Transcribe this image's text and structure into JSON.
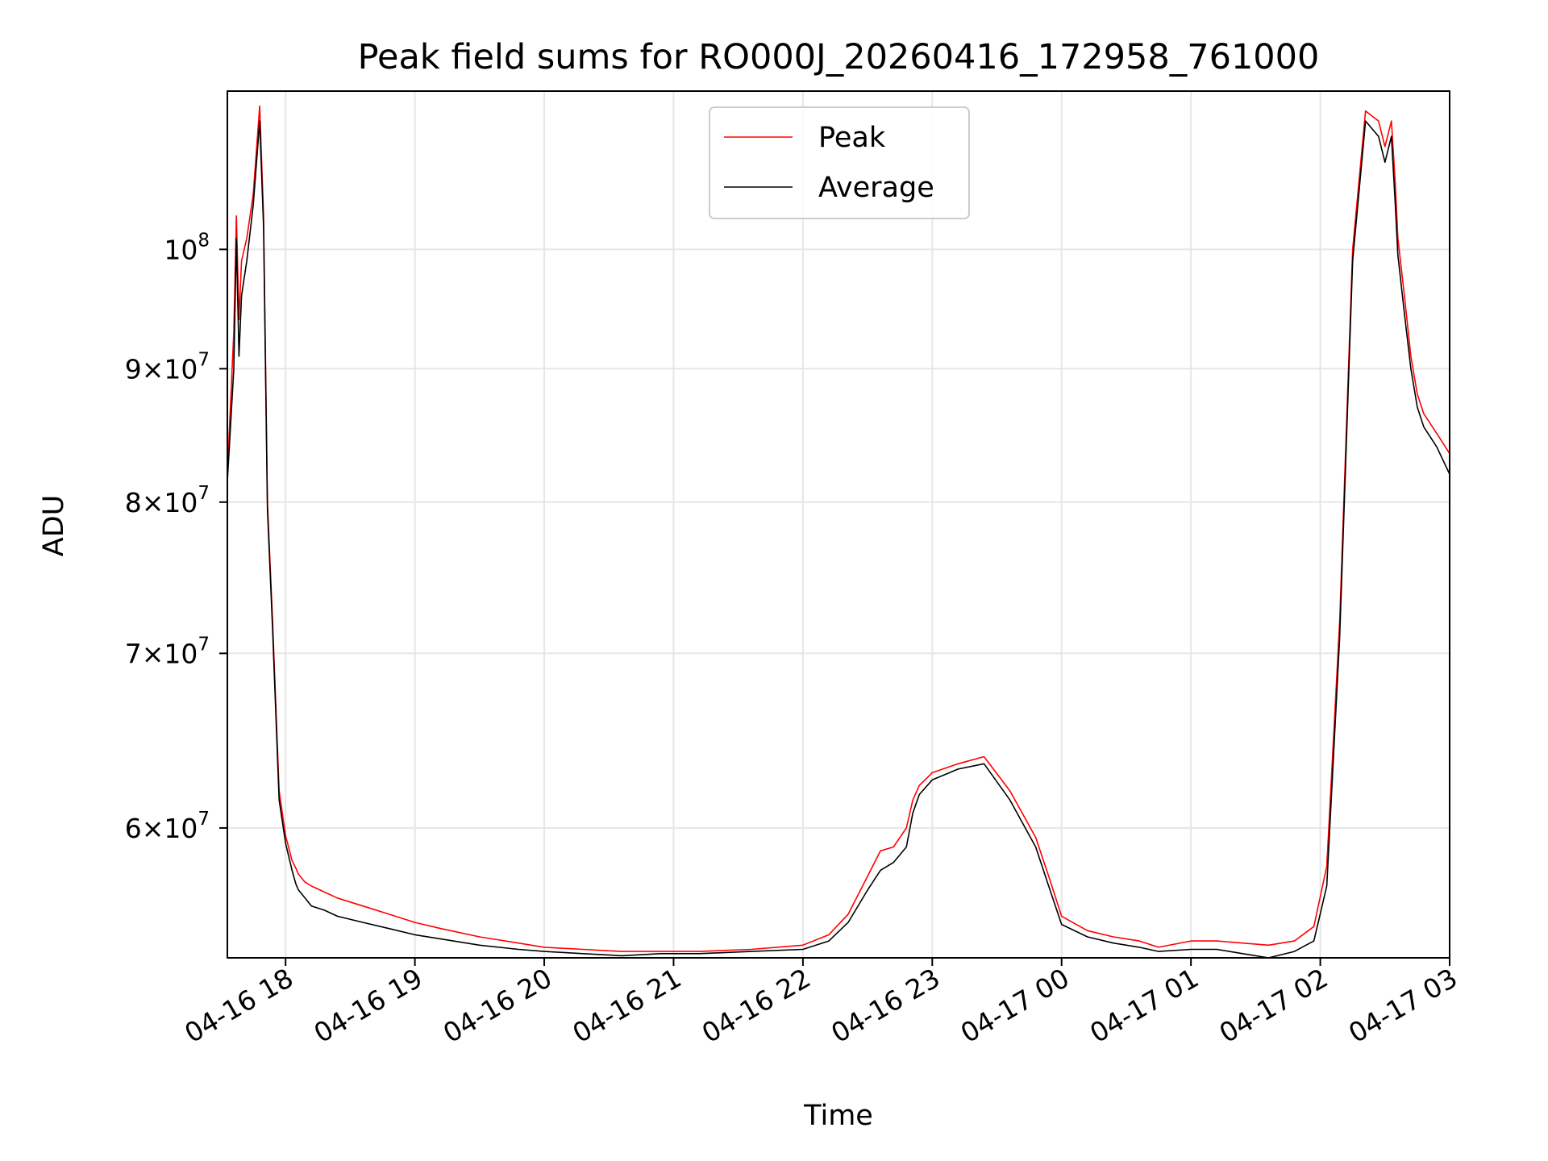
{
  "chart_data": {
    "type": "line",
    "title": "Peak field sums for RO000J_20260416_172958_761000",
    "xlabel": "Time",
    "ylabel": "ADU",
    "yscale": "log",
    "xlim": [
      17.55,
      27.0
    ],
    "ylim": [
      53500000,
      115000000
    ],
    "grid": true,
    "legend": {
      "position": "top-center",
      "entries": [
        "Peak",
        "Average"
      ]
    },
    "x_ticks": [
      {
        "value": 18,
        "label": "04-16 18"
      },
      {
        "value": 19,
        "label": "04-16 19"
      },
      {
        "value": 20,
        "label": "04-16 20"
      },
      {
        "value": 21,
        "label": "04-16 21"
      },
      {
        "value": 22,
        "label": "04-16 22"
      },
      {
        "value": 23,
        "label": "04-16 23"
      },
      {
        "value": 24,
        "label": "04-17 00"
      },
      {
        "value": 25,
        "label": "04-17 01"
      },
      {
        "value": 26,
        "label": "04-17 02"
      },
      {
        "value": 27,
        "label": "04-17 03"
      }
    ],
    "y_ticks": [
      {
        "value": 60000000,
        "mantissa": "6",
        "base": "10",
        "exponent": "7"
      },
      {
        "value": 70000000,
        "mantissa": "7",
        "base": "10",
        "exponent": "7"
      },
      {
        "value": 80000000,
        "mantissa": "8",
        "base": "10",
        "exponent": "7"
      },
      {
        "value": 90000000,
        "mantissa": "9",
        "base": "10",
        "exponent": "7"
      },
      {
        "value": 100000000,
        "mantissa": "",
        "base": "10",
        "exponent": "8"
      }
    ],
    "series": [
      {
        "name": "Peak",
        "color": "#ff0000",
        "x": [
          17.55,
          17.6,
          17.62,
          17.64,
          17.66,
          17.7,
          17.75,
          17.8,
          17.83,
          17.86,
          17.9,
          17.95,
          18.0,
          18.05,
          18.08,
          18.1,
          18.15,
          18.2,
          18.3,
          18.4,
          18.6,
          18.8,
          19.0,
          19.2,
          19.5,
          19.8,
          20.0,
          20.3,
          20.6,
          20.9,
          21.2,
          21.6,
          22.0,
          22.2,
          22.35,
          22.5,
          22.6,
          22.7,
          22.8,
          22.85,
          22.9,
          23.0,
          23.2,
          23.4,
          23.6,
          23.8,
          23.9,
          24.0,
          24.2,
          24.4,
          24.6,
          24.75,
          25.0,
          25.2,
          25.4,
          25.6,
          25.8,
          25.95,
          26.05,
          26.15,
          26.25,
          26.35,
          26.45,
          26.5,
          26.55,
          26.58,
          26.6,
          26.65,
          26.7,
          26.75,
          26.8,
          26.9,
          27.0
        ],
        "y": [
          82000000,
          93000000,
          103000000,
          94000000,
          99000000,
          101000000,
          105000000,
          113500000,
          103000000,
          80000000,
          72000000,
          62000000,
          59600000,
          58300000,
          57900000,
          57600000,
          57200000,
          57000000,
          56700000,
          56400000,
          56000000,
          55600000,
          55200000,
          54900000,
          54500000,
          54200000,
          54000000,
          53900000,
          53800000,
          53800000,
          53800000,
          53900000,
          54100000,
          54600000,
          55600000,
          57500000,
          58800000,
          59000000,
          60000000,
          61500000,
          62300000,
          63000000,
          63500000,
          63900000,
          62000000,
          59500000,
          57500000,
          55500000,
          54800000,
          54500000,
          54300000,
          54000000,
          54300000,
          54300000,
          54200000,
          54100000,
          54300000,
          55000000,
          58000000,
          72000000,
          100000000,
          113000000,
          112000000,
          109500000,
          112000000,
          106000000,
          101000000,
          96000000,
          91000000,
          88000000,
          86500000,
          85000000,
          83500000
        ]
      },
      {
        "name": "Average",
        "color": "#000000",
        "x": [
          17.55,
          17.6,
          17.62,
          17.64,
          17.66,
          17.7,
          17.75,
          17.8,
          17.83,
          17.86,
          17.9,
          17.95,
          18.0,
          18.05,
          18.08,
          18.1,
          18.15,
          18.2,
          18.3,
          18.4,
          18.6,
          18.8,
          19.0,
          19.2,
          19.5,
          19.8,
          20.0,
          20.3,
          20.6,
          20.9,
          21.2,
          21.6,
          22.0,
          22.2,
          22.35,
          22.5,
          22.6,
          22.7,
          22.8,
          22.85,
          22.9,
          23.0,
          23.2,
          23.4,
          23.6,
          23.8,
          23.9,
          24.0,
          24.2,
          24.4,
          24.6,
          24.75,
          25.0,
          25.2,
          25.4,
          25.6,
          25.8,
          25.95,
          26.05,
          26.15,
          26.25,
          26.35,
          26.45,
          26.5,
          26.55,
          26.58,
          26.6,
          26.65,
          26.7,
          26.75,
          26.8,
          26.9,
          27.0
        ],
        "y": [
          81500000,
          90000000,
          101000000,
          91000000,
          96000000,
          99000000,
          104000000,
          112000000,
          102000000,
          79500000,
          71500000,
          61500000,
          59200000,
          57800000,
          57100000,
          56800000,
          56400000,
          56000000,
          55800000,
          55500000,
          55200000,
          54900000,
          54600000,
          54400000,
          54100000,
          53900000,
          53800000,
          53700000,
          53600000,
          53700000,
          53700000,
          53800000,
          53900000,
          54300000,
          55200000,
          56800000,
          57800000,
          58200000,
          59000000,
          60800000,
          61800000,
          62600000,
          63200000,
          63500000,
          61500000,
          59000000,
          57000000,
          55100000,
          54500000,
          54200000,
          54000000,
          53800000,
          53900000,
          53900000,
          53700000,
          53500000,
          53800000,
          54300000,
          57000000,
          71000000,
          99000000,
          112000000,
          110500000,
          108000000,
          110500000,
          104000000,
          99500000,
          94500000,
          90000000,
          87000000,
          85500000,
          84000000,
          82000000
        ]
      }
    ]
  }
}
